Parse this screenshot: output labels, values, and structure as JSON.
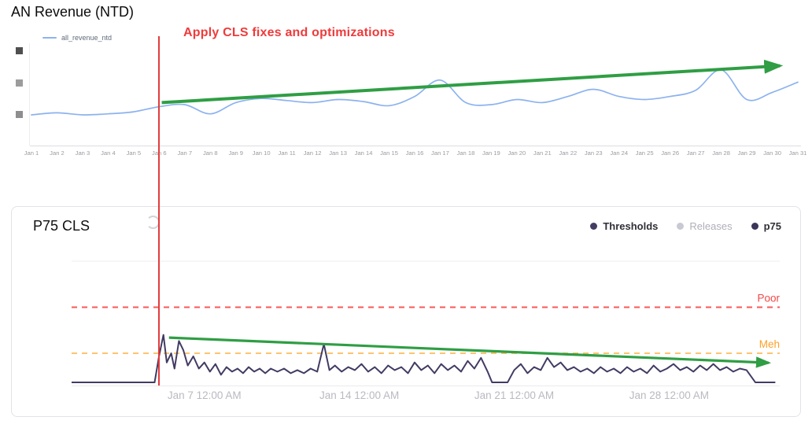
{
  "chart_data": [
    {
      "type": "line",
      "title": "AN Revenue (NTD)",
      "legend": [
        {
          "label": "all_revenue_ntd",
          "color": "#8cb2ef"
        }
      ],
      "categories": [
        "Jan 1",
        "Jan 2",
        "Jan 3",
        "Jan 4",
        "Jan 5",
        "Jan 6",
        "Jan 7",
        "Jan 8",
        "Jan 9",
        "Jan 10",
        "Jan 11",
        "Jan 12",
        "Jan 13",
        "Jan 14",
        "Jan 15",
        "Jan 16",
        "Jan 17",
        "Jan 18",
        "Jan 19",
        "Jan 20",
        "Jan 21",
        "Jan 22",
        "Jan 23",
        "Jan 24",
        "Jan 25",
        "Jan 26",
        "Jan 27",
        "Jan 28",
        "Jan 29",
        "Jan 30",
        "Jan 31"
      ],
      "series": [
        {
          "name": "all_revenue_ntd",
          "color": "#8cb2ef",
          "values": [
            30,
            32,
            30,
            31,
            33,
            38,
            40,
            31,
            42,
            46,
            44,
            42,
            45,
            43,
            39,
            48,
            64,
            42,
            40,
            45,
            42,
            48,
            55,
            48,
            45,
            48,
            54,
            74,
            45,
            52,
            62
          ]
        }
      ],
      "ylim": [
        0,
        100
      ],
      "y_ticks_redacted": true,
      "y_tick_placeholder_colors": [
        "#4f4f4f",
        "#9c9c9c",
        "#8e8e8e"
      ],
      "grid": false,
      "legend_position": "top-left",
      "annotations": {
        "vertical_line": {
          "x": "Jan 6",
          "color": "#e23b3b",
          "label": "Apply CLS fixes and optimizations",
          "label_color": "#ef3b3b"
        },
        "trend_arrow": {
          "from_day": 6.1,
          "from_value": 42,
          "to_day": 30.3,
          "to_value": 78,
          "color": "#2f9e44"
        }
      }
    },
    {
      "type": "line",
      "title": "P75 CLS",
      "legend": [
        {
          "label": "Thresholds",
          "color": "#443d63",
          "text_color": "#2f2f36"
        },
        {
          "label": "Releases",
          "color": "#c9c9d3",
          "text_color": "#b0aeb8"
        },
        {
          "label": "p75",
          "color": "#3b3559",
          "text_color": "#2f2f36"
        }
      ],
      "thresholds": [
        {
          "label": "Poor",
          "value": 0.25,
          "color": "#fa5757",
          "label_color": "#f64646",
          "style": "dashed"
        },
        {
          "label": "Meh",
          "value": 0.1,
          "color": "#ffc46e",
          "label_color": "#ffa025",
          "style": "dashed"
        }
      ],
      "x_ticks": [
        {
          "day": 7,
          "label": "Jan 7 12:00 AM"
        },
        {
          "day": 14,
          "label": "Jan 14 12:00 AM"
        },
        {
          "day": 21,
          "label": "Jan 21 12:00 AM"
        },
        {
          "day": 28,
          "label": "Jan 28 12:00 AM"
        }
      ],
      "xlim_days": [
        1,
        33
      ],
      "ylim": [
        0,
        0.4
      ],
      "grid_values": [
        0.4
      ],
      "legend_position": "top-right",
      "series": [
        {
          "name": "p75",
          "color": "#413b63",
          "points": [
            [
              1,
              0.005
            ],
            [
              4.75,
              0.005
            ],
            [
              4.95,
              0.09
            ],
            [
              5.15,
              0.16
            ],
            [
              5.3,
              0.07
            ],
            [
              5.5,
              0.1
            ],
            [
              5.65,
              0.05
            ],
            [
              5.85,
              0.14
            ],
            [
              6.05,
              0.11
            ],
            [
              6.25,
              0.06
            ],
            [
              6.5,
              0.09
            ],
            [
              6.75,
              0.05
            ],
            [
              7,
              0.07
            ],
            [
              7.25,
              0.04
            ],
            [
              7.5,
              0.065
            ],
            [
              7.75,
              0.03
            ],
            [
              8,
              0.055
            ],
            [
              8.25,
              0.04
            ],
            [
              8.5,
              0.05
            ],
            [
              8.75,
              0.035
            ],
            [
              9,
              0.055
            ],
            [
              9.25,
              0.04
            ],
            [
              9.5,
              0.05
            ],
            [
              9.75,
              0.035
            ],
            [
              10,
              0.05
            ],
            [
              10.3,
              0.04
            ],
            [
              10.6,
              0.05
            ],
            [
              10.9,
              0.035
            ],
            [
              11.2,
              0.045
            ],
            [
              11.5,
              0.035
            ],
            [
              11.8,
              0.05
            ],
            [
              12.1,
              0.04
            ],
            [
              12.4,
              0.13
            ],
            [
              12.65,
              0.045
            ],
            [
              12.9,
              0.06
            ],
            [
              13.2,
              0.04
            ],
            [
              13.5,
              0.055
            ],
            [
              13.8,
              0.045
            ],
            [
              14.1,
              0.065
            ],
            [
              14.4,
              0.04
            ],
            [
              14.7,
              0.055
            ],
            [
              15,
              0.035
            ],
            [
              15.3,
              0.06
            ],
            [
              15.6,
              0.045
            ],
            [
              15.9,
              0.055
            ],
            [
              16.2,
              0.035
            ],
            [
              16.5,
              0.07
            ],
            [
              16.8,
              0.045
            ],
            [
              17.1,
              0.06
            ],
            [
              17.4,
              0.035
            ],
            [
              17.7,
              0.065
            ],
            [
              18,
              0.045
            ],
            [
              18.3,
              0.06
            ],
            [
              18.6,
              0.04
            ],
            [
              18.9,
              0.075
            ],
            [
              19.2,
              0.05
            ],
            [
              19.5,
              0.085
            ],
            [
              19.8,
              0.04
            ],
            [
              20,
              0.005
            ],
            [
              20.7,
              0.005
            ],
            [
              21,
              0.045
            ],
            [
              21.3,
              0.065
            ],
            [
              21.6,
              0.035
            ],
            [
              21.9,
              0.055
            ],
            [
              22.2,
              0.045
            ],
            [
              22.5,
              0.085
            ],
            [
              22.8,
              0.055
            ],
            [
              23.1,
              0.07
            ],
            [
              23.4,
              0.045
            ],
            [
              23.7,
              0.055
            ],
            [
              24,
              0.04
            ],
            [
              24.3,
              0.05
            ],
            [
              24.6,
              0.035
            ],
            [
              24.9,
              0.055
            ],
            [
              25.2,
              0.04
            ],
            [
              25.5,
              0.05
            ],
            [
              25.8,
              0.035
            ],
            [
              26.1,
              0.055
            ],
            [
              26.4,
              0.04
            ],
            [
              26.7,
              0.05
            ],
            [
              27,
              0.035
            ],
            [
              27.3,
              0.06
            ],
            [
              27.6,
              0.04
            ],
            [
              27.9,
              0.05
            ],
            [
              28.2,
              0.065
            ],
            [
              28.5,
              0.045
            ],
            [
              28.8,
              0.055
            ],
            [
              29.1,
              0.04
            ],
            [
              29.4,
              0.06
            ],
            [
              29.7,
              0.045
            ],
            [
              30,
              0.065
            ],
            [
              30.3,
              0.045
            ],
            [
              30.6,
              0.055
            ],
            [
              30.9,
              0.04
            ],
            [
              31.2,
              0.05
            ],
            [
              31.5,
              0.045
            ],
            [
              31.9,
              0.005
            ],
            [
              32.8,
              0.005
            ]
          ]
        }
      ],
      "trend_arrow": {
        "from_day": 5.4,
        "from_value": 0.151,
        "to_day": 32.5,
        "to_value": 0.069,
        "color": "#2f9e44"
      }
    }
  ]
}
